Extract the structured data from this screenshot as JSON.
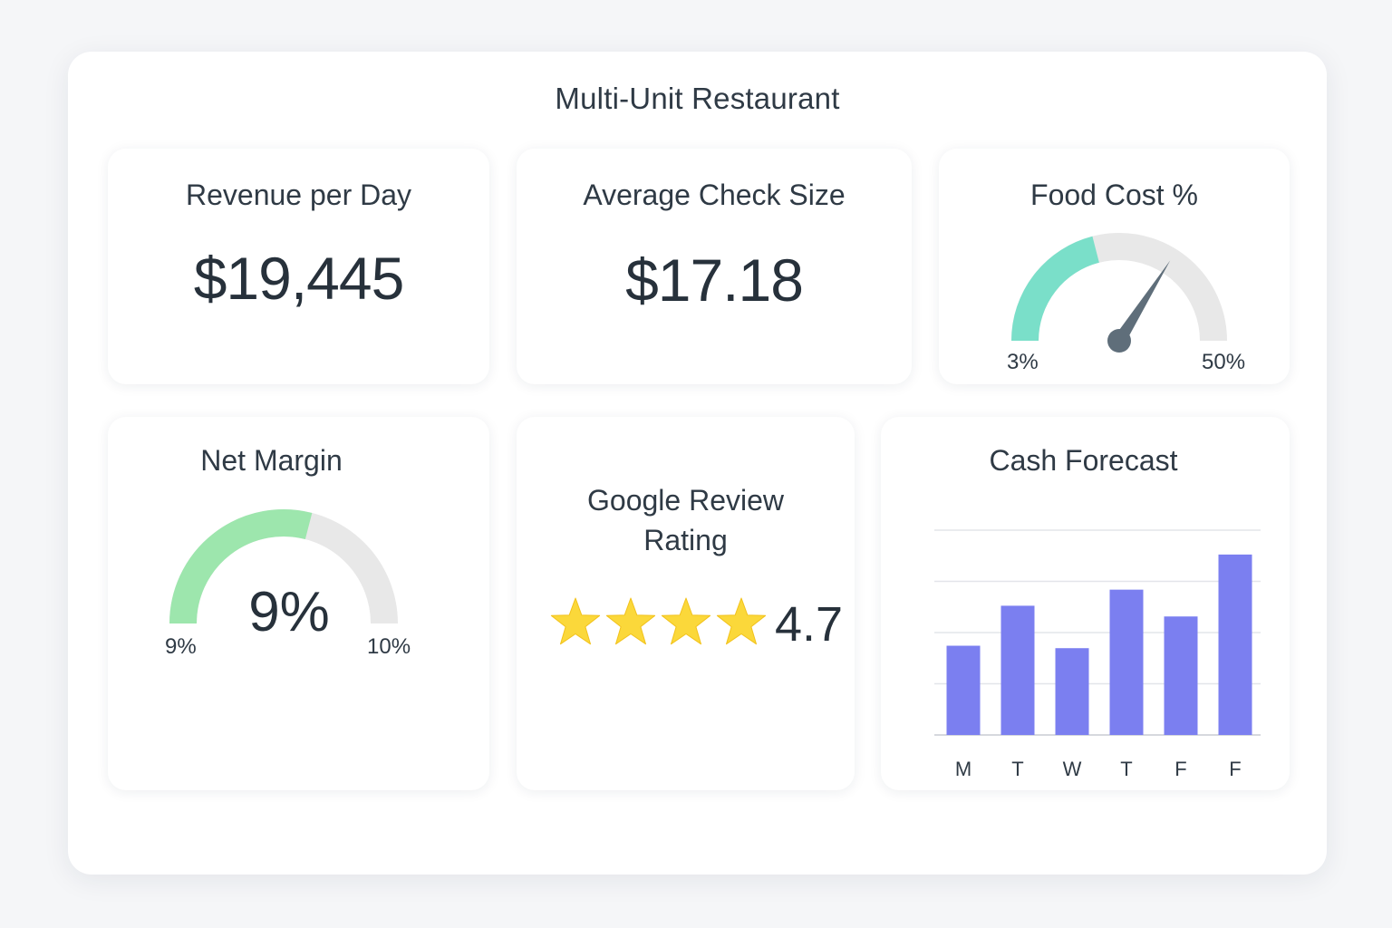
{
  "dashboard": {
    "title": "Multi-Unit Restaurant"
  },
  "revenue": {
    "title": "Revenue per Day",
    "value": "$19,445"
  },
  "check": {
    "title": "Average Check Size",
    "value": "$17.18"
  },
  "food_cost": {
    "title": "Food Cost %",
    "min_label": "3%",
    "max_label": "50%",
    "fill_fraction": 0.42,
    "needle_fraction": 0.68,
    "fill_color": "#7adfc9",
    "track_color": "#e8e8e8",
    "needle_color": "#5f6e7a"
  },
  "net_margin": {
    "title": "Net Margin",
    "value": "9%",
    "min_label": "9%",
    "max_label": "10%",
    "fill_fraction": 0.58,
    "fill_color": "#9de6ad",
    "track_color": "#e8e8e8"
  },
  "google_review": {
    "title_line1": "Google Review",
    "title_line2": "Rating",
    "rating": "4.7",
    "stars_shown": 4,
    "star_color": "#fbd83a"
  },
  "cash_forecast": {
    "title": "Cash Forecast",
    "bar_color": "#7b7ff0"
  },
  "chart_data": {
    "type": "bar",
    "title": "Cash Forecast",
    "categories": [
      "M",
      "T",
      "W",
      "T",
      "F",
      "F"
    ],
    "values": [
      1.83,
      2.65,
      1.78,
      2.98,
      2.43,
      3.7
    ],
    "ylim": [
      0,
      4.2
    ],
    "grid": true,
    "gridlines": 4,
    "xlabel": "",
    "ylabel": ""
  }
}
